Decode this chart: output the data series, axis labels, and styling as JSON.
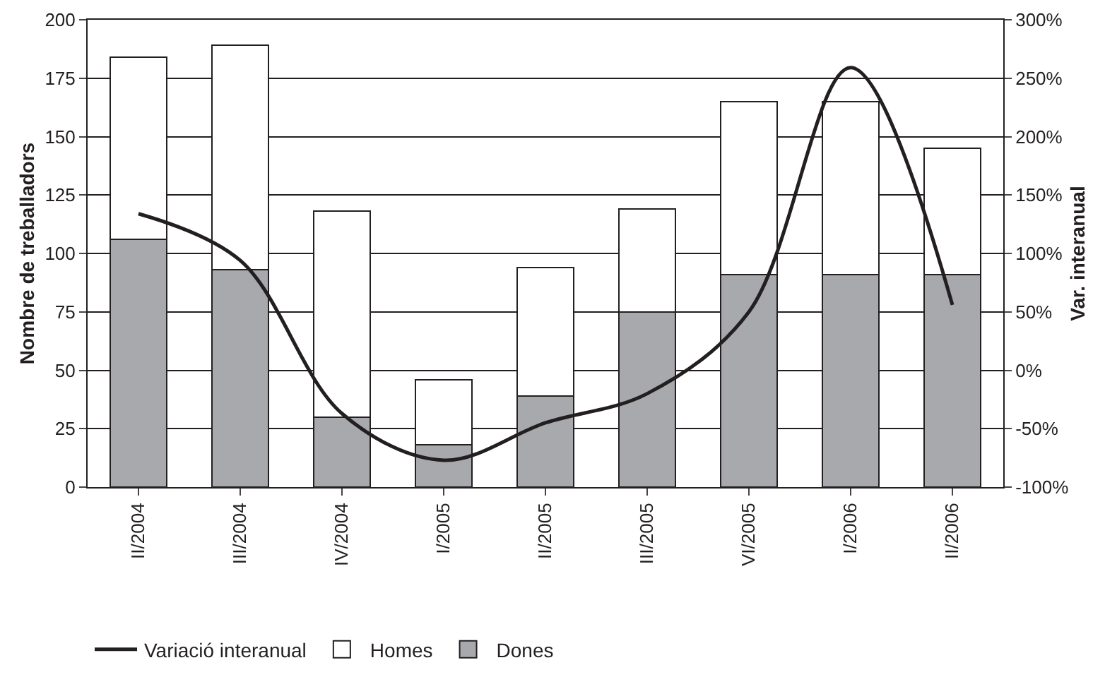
{
  "chart_data": {
    "type": "bar",
    "stacked": true,
    "ylabel": "Nombre de treballadors",
    "y2label": "Var. interanual",
    "categories": [
      "II/2004",
      "III/2004",
      "IV/2004",
      "I/2005",
      "II/2005",
      "III/2005",
      "VI/2005",
      "I/2006",
      "II/2006"
    ],
    "series": [
      {
        "name": "Dones",
        "color": "#a7a9ac",
        "values": [
          106,
          93,
          30,
          18,
          39,
          75,
          91,
          91,
          91
        ]
      },
      {
        "name": "Homes",
        "color": "#ffffff",
        "values": [
          78,
          96,
          88,
          28,
          55,
          44,
          74,
          74,
          54
        ]
      },
      {
        "name": "Variació interanual",
        "type": "line",
        "axis": "y2",
        "color": "#231f20",
        "values": [
          134,
          94,
          -37,
          -77,
          -45,
          -20,
          50,
          259,
          56
        ]
      }
    ],
    "ylim": [
      0,
      200
    ],
    "yticks": [
      0,
      25,
      50,
      75,
      100,
      125,
      150,
      175,
      200
    ],
    "y2lim": [
      -100,
      300
    ],
    "y2ticks": [
      {
        "value": -100,
        "label": "-100%"
      },
      {
        "value": -50,
        "label": "-50%"
      },
      {
        "value": 0,
        "label": "0%"
      },
      {
        "value": 50,
        "label": "50%"
      },
      {
        "value": 100,
        "label": "100%"
      },
      {
        "value": 150,
        "label": "150%"
      },
      {
        "value": 200,
        "label": "200%"
      },
      {
        "value": 250,
        "label": "250%"
      },
      {
        "value": 300,
        "label": "300%"
      }
    ],
    "grid": "y",
    "legend": "bottom left",
    "marker": "none",
    "line_style": "solid"
  }
}
